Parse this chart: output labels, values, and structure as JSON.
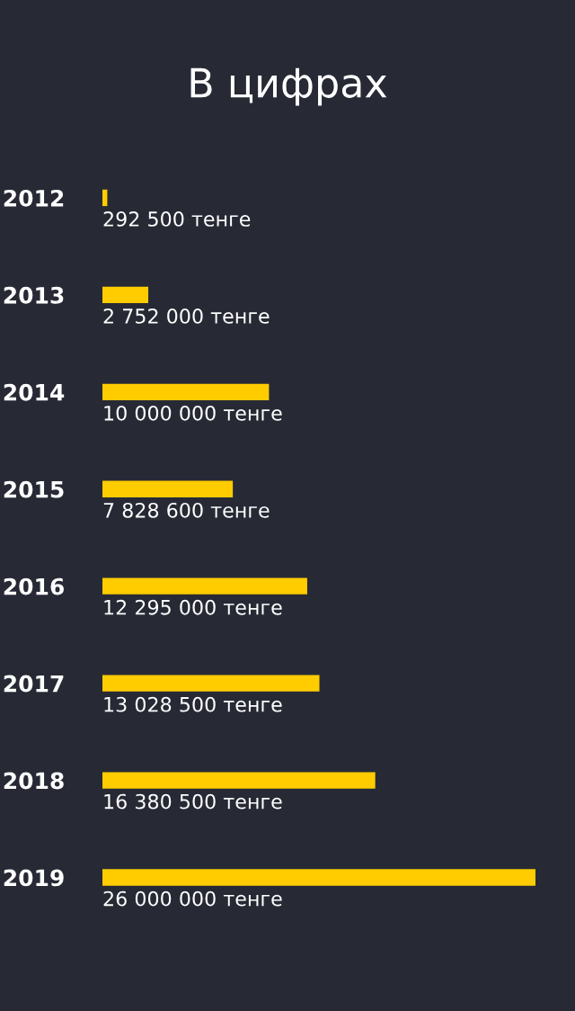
{
  "chart_data": {
    "type": "bar",
    "orientation": "horizontal",
    "title": "В цифрах",
    "categories": [
      "2012",
      "2013",
      "2014",
      "2015",
      "2016",
      "2017",
      "2018",
      "2019"
    ],
    "values": [
      292500,
      2752000,
      10000000,
      7828600,
      12295000,
      13028500,
      16380500,
      26000000
    ],
    "value_labels": [
      "292 500 тенге",
      "2 752 000 тенге",
      "10 000 000 тенге",
      "7 828 600 тенге",
      "12 295 000 тенге",
      "13 028 500 тенге",
      "16 380 500 тенге",
      "26 000 000 тенге"
    ],
    "color": "#ffcc00"
  }
}
